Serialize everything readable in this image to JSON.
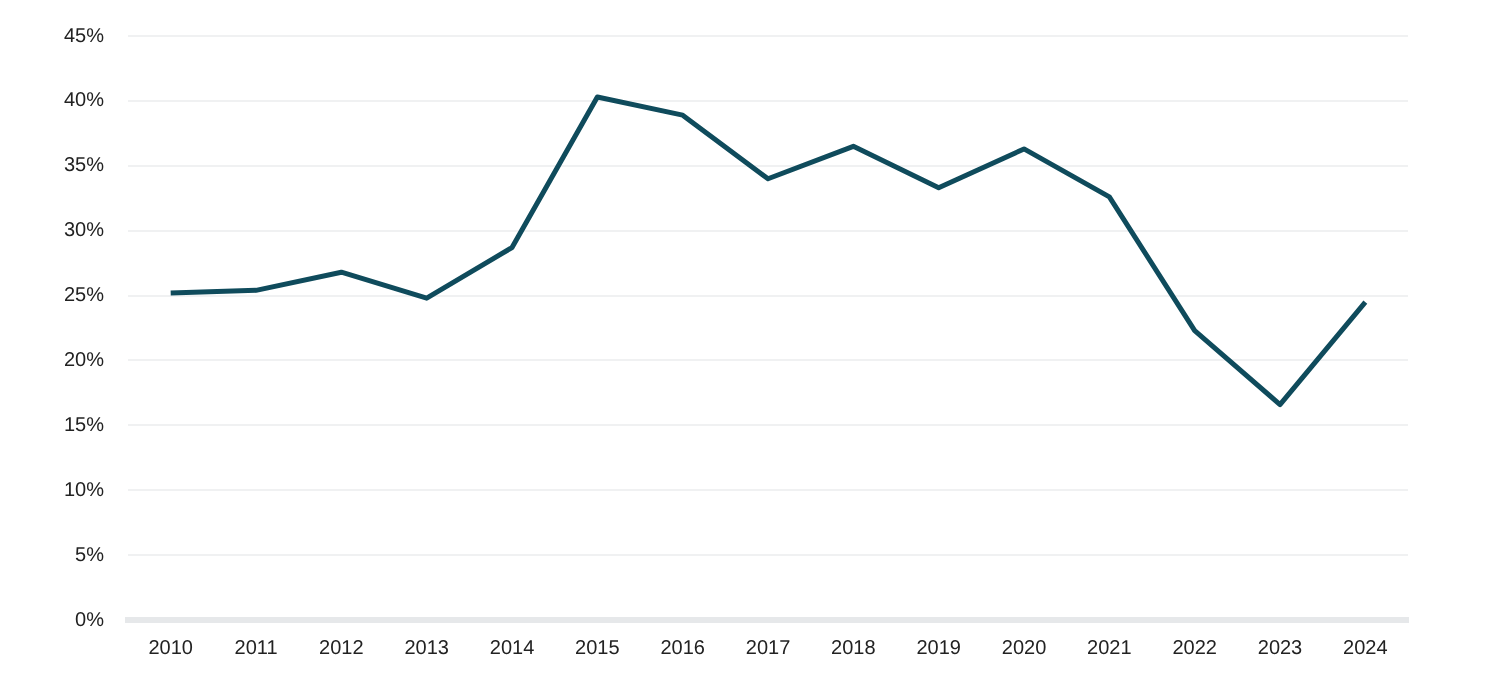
{
  "chart_data": {
    "type": "line",
    "categories": [
      "2010",
      "2011",
      "2012",
      "2013",
      "2014",
      "2015",
      "2016",
      "2017",
      "2018",
      "2019",
      "2020",
      "2021",
      "2022",
      "2023",
      "2024"
    ],
    "series": [
      {
        "color": "#0f4b5c",
        "values": [
          25.2,
          25.4,
          26.8,
          24.8,
          28.7,
          40.3,
          38.9,
          34.0,
          36.5,
          33.3,
          36.3,
          32.6,
          22.3,
          16.6,
          24.5
        ]
      }
    ],
    "ylim": [
      0,
      45
    ],
    "yticks": [
      {
        "value": 0,
        "label": "0%"
      },
      {
        "value": 5,
        "label": "5%"
      },
      {
        "value": 10,
        "label": "10%"
      },
      {
        "value": 15,
        "label": "15%"
      },
      {
        "value": 20,
        "label": "20%"
      },
      {
        "value": 25,
        "label": "25%"
      },
      {
        "value": 30,
        "label": "30%"
      },
      {
        "value": 35,
        "label": "35%"
      },
      {
        "value": 40,
        "label": "40%"
      },
      {
        "value": 45,
        "label": "45%"
      }
    ],
    "grid": "y",
    "legend": false,
    "marker": "none",
    "line_style": "solid"
  }
}
